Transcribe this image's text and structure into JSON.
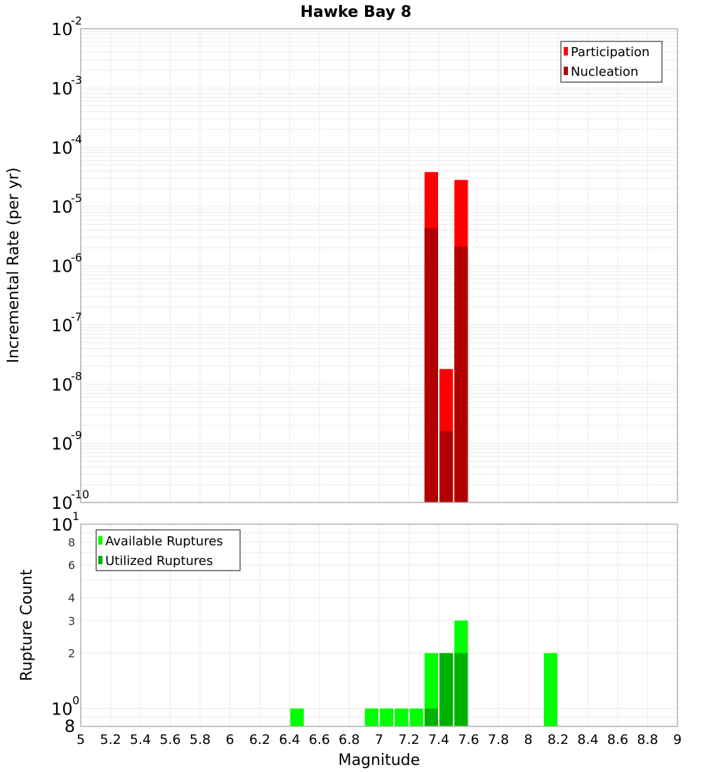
{
  "chart_data": [
    {
      "type": "bar",
      "title": "Hawke Bay 8",
      "xlabel": "Magnitude",
      "ylabel": "Incremental Rate (per yr)",
      "yscale": "log",
      "ylim": [
        1e-10,
        0.01
      ],
      "xlim": [
        5,
        9
      ],
      "bin_width": 0.1,
      "grid": true,
      "legend_position": "top-right",
      "x": [
        7.35,
        7.45,
        7.55
      ],
      "series": [
        {
          "name": "Participation",
          "color": "#ff0000",
          "values": [
            3.8e-05,
            1.8e-08,
            2.8e-05
          ]
        },
        {
          "name": "Nucleation",
          "color": "#b20000",
          "values": [
            4.3e-06,
            1.6e-09,
            2.1e-06
          ]
        }
      ],
      "y_tick_labels": [
        "10^-2",
        "10^-3",
        "10^-4",
        "10^-5",
        "10^-6",
        "10^-7",
        "10^-8",
        "10^-9",
        "10^-10"
      ]
    },
    {
      "type": "bar",
      "title": "",
      "xlabel": "Magnitude",
      "ylabel": "Rupture Count",
      "yscale": "log",
      "ylim": [
        0.8,
        10
      ],
      "xlim": [
        5,
        9
      ],
      "bin_width": 0.1,
      "grid": true,
      "legend_position": "top-left",
      "x": [
        6.45,
        6.95,
        7.05,
        7.15,
        7.25,
        7.35,
        7.45,
        7.55,
        8.15
      ],
      "series": [
        {
          "name": "Available Ruptures",
          "color": "#00ff00",
          "values": [
            1,
            1,
            1,
            1,
            1,
            2,
            2,
            3,
            2
          ]
        },
        {
          "name": "Utilized Ruptures",
          "color": "#00b200",
          "values": [
            0,
            0,
            0,
            0,
            0,
            1,
            2,
            2,
            0
          ]
        }
      ],
      "y_tick_labels": [
        "10^1",
        "8",
        "6",
        "4",
        "3",
        "2",
        "10^0",
        "8"
      ],
      "x_tick_labels": [
        "5",
        "5.2",
        "5.4",
        "5.6",
        "5.8",
        "6",
        "6.2",
        "6.4",
        "6.6",
        "6.8",
        "7",
        "7.2",
        "7.4",
        "7.6",
        "7.8",
        "8",
        "8.2",
        "8.4",
        "8.6",
        "8.8",
        "9"
      ]
    }
  ],
  "labels": {
    "title": "Hawke Bay 8",
    "xlabel": "Magnitude",
    "top_ylabel": "Incremental Rate (per yr)",
    "bottom_ylabel": "Rupture Count",
    "legend_top": [
      "Participation",
      "Nucleation"
    ],
    "legend_bottom": [
      "Available Ruptures",
      "Utilized Ruptures"
    ]
  }
}
